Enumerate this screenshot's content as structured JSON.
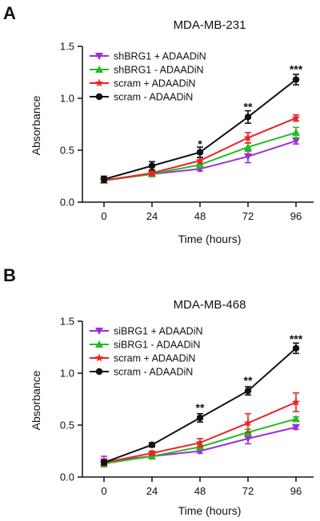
{
  "chart_data": [
    {
      "type": "line",
      "panel": "A",
      "title": "MDA-MB-231",
      "xlabel": "Time (hours)",
      "ylabel": "Absorbance",
      "x": [
        0,
        24,
        48,
        72,
        96
      ],
      "xticks": [
        "0",
        "24",
        "48",
        "72",
        "96"
      ],
      "ylim": [
        0,
        1.5
      ],
      "yticks": [
        "0.0",
        "0.5",
        "1.0",
        "1.5"
      ],
      "grid": false,
      "legend_position": "top-left",
      "series": [
        {
          "name": "shBRG1 + ADAADiN",
          "color": "#9b30d9",
          "marker": "triangle-down",
          "values": [
            0.21,
            0.27,
            0.32,
            0.44,
            0.59
          ],
          "errors": [
            0.02,
            0.02,
            0.02,
            0.06,
            0.03
          ]
        },
        {
          "name": "shBRG1 - ADAADiN",
          "color": "#22bb22",
          "marker": "triangle-up",
          "values": [
            0.21,
            0.27,
            0.36,
            0.53,
            0.67
          ],
          "errors": [
            0.02,
            0.02,
            0.03,
            0.04,
            0.05
          ]
        },
        {
          "name": "scram + ADAADiN",
          "color": "#ee2222",
          "marker": "star",
          "values": [
            0.21,
            0.28,
            0.4,
            0.62,
            0.81
          ],
          "errors": [
            0.02,
            0.02,
            0.03,
            0.05,
            0.03
          ]
        },
        {
          "name": "scram - ADAADiN",
          "color": "#111111",
          "marker": "circle",
          "values": [
            0.22,
            0.35,
            0.48,
            0.82,
            1.18
          ],
          "errors": [
            0.03,
            0.04,
            0.05,
            0.06,
            0.05
          ]
        }
      ],
      "annotations": [
        {
          "x": 48,
          "y": 0.56,
          "text": "*"
        },
        {
          "x": 72,
          "y": 0.92,
          "text": "**"
        },
        {
          "x": 96,
          "y": 1.28,
          "text": "***"
        }
      ]
    },
    {
      "type": "line",
      "panel": "B",
      "title": "MDA-MB-468",
      "xlabel": "Time (hours)",
      "ylabel": "Absorbance",
      "x": [
        0,
        24,
        48,
        72,
        96
      ],
      "xticks": [
        "0",
        "24",
        "48",
        "72",
        "96"
      ],
      "ylim": [
        0,
        1.5
      ],
      "yticks": [
        "0.0",
        "0.5",
        "1.0",
        "1.5"
      ],
      "grid": false,
      "legend_position": "top-left",
      "series": [
        {
          "name": "siBRG1 + ADAADiN",
          "color": "#9b30d9",
          "marker": "triangle-down",
          "values": [
            0.15,
            0.2,
            0.25,
            0.37,
            0.48
          ],
          "errors": [
            0.05,
            0.02,
            0.02,
            0.05,
            0.02
          ]
        },
        {
          "name": "siBRG1 - ADAADiN",
          "color": "#22bb22",
          "marker": "triangle-up",
          "values": [
            0.13,
            0.2,
            0.29,
            0.43,
            0.56
          ],
          "errors": [
            0.03,
            0.02,
            0.02,
            0.03,
            0.02
          ]
        },
        {
          "name": "scram + ADAADiN",
          "color": "#ee2222",
          "marker": "star",
          "values": [
            0.14,
            0.23,
            0.33,
            0.52,
            0.72
          ],
          "errors": [
            0.03,
            0.02,
            0.04,
            0.09,
            0.09
          ]
        },
        {
          "name": "scram - ADAADiN",
          "color": "#111111",
          "marker": "circle",
          "values": [
            0.14,
            0.31,
            0.57,
            0.83,
            1.24
          ],
          "errors": [
            0.02,
            0.02,
            0.04,
            0.04,
            0.05
          ]
        }
      ],
      "annotations": [
        {
          "x": 48,
          "y": 0.67,
          "text": "**"
        },
        {
          "x": 72,
          "y": 0.93,
          "text": "**"
        },
        {
          "x": 96,
          "y": 1.33,
          "text": "***"
        }
      ]
    }
  ]
}
